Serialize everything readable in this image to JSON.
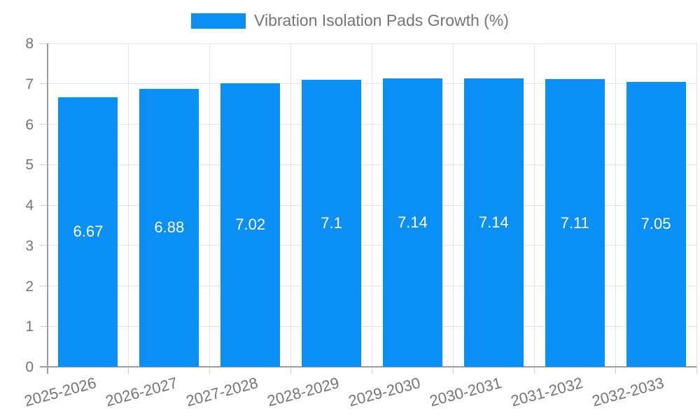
{
  "chart": {
    "colors": {
      "bar": "#0a90f5",
      "grid": "#e4e4e4",
      "tick": "#cfcfcf",
      "axis": "#9e9e9e",
      "tick_text": "#757575",
      "bar_label_text": "#ffffff",
      "background": "#ffffff"
    }
  },
  "chart_data": {
    "type": "bar",
    "title": "",
    "legend": [
      "Vibration Isolation Pads Growth (%)"
    ],
    "legend_position": "top",
    "categories": [
      "2025-2026",
      "2026-2027",
      "2027-2028",
      "2028-2029",
      "2029-2030",
      "2030-2031",
      "2031-2032",
      "2032-2033"
    ],
    "series": [
      {
        "name": "Vibration Isolation Pads Growth (%)",
        "values": [
          6.67,
          6.88,
          7.02,
          7.1,
          7.14,
          7.14,
          7.11,
          7.05
        ]
      }
    ],
    "data_labels": [
      "6.67",
      "6.88",
      "7.02",
      "7.1",
      "7.14",
      "7.14",
      "7.11",
      "7.05"
    ],
    "xlabel": "",
    "ylabel": "",
    "ylim": [
      0,
      8
    ],
    "yticks": [
      0,
      1,
      2,
      3,
      4,
      5,
      6,
      7,
      8
    ],
    "grid": true,
    "x_label_rotation_deg": -15
  }
}
